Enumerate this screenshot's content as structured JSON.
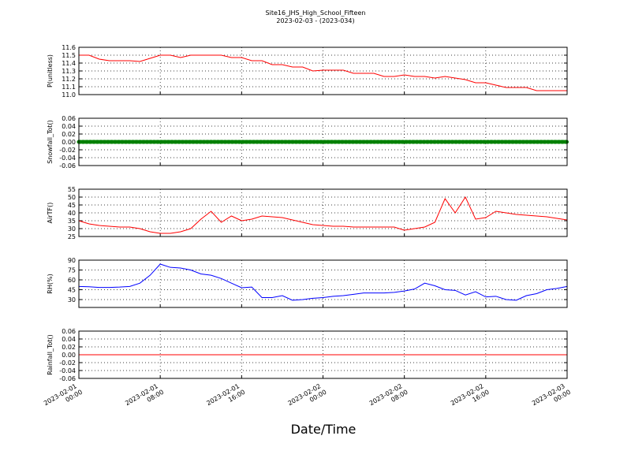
{
  "title": "Site16_JHS_High_School_Fifteen",
  "subtitle": "2023-02-03 - (2023-034)",
  "xlabel": "Date/Time",
  "chart_data": [
    {
      "type": "line",
      "ylabel": "P(unitless)",
      "ylim": [
        11.0,
        11.6
      ],
      "yticks": [
        {
          "value": 11.0,
          "label": "11.0"
        },
        11.1,
        11.2,
        11.3,
        11.4,
        11.5,
        11.6
      ],
      "grid": true,
      "xlim": [
        "2023-02-01 00:00",
        "2023-02-03 00:00"
      ],
      "xticks": [
        "2023-02-01 00:00",
        "2023-02-01 08:00",
        "2023-02-01 16:00",
        "2023-02-02 00:00",
        "2023-02-02 08:00",
        "2023-02-02 16:00",
        "2023-02-03 00:00"
      ],
      "x": [
        "2023-02-01 00:00",
        "2023-02-01 01:00",
        "2023-02-01 02:00",
        "2023-02-01 03:00",
        "2023-02-01 04:00",
        "2023-02-01 05:00",
        "2023-02-01 06:00",
        "2023-02-01 07:00",
        "2023-02-01 08:00",
        "2023-02-01 09:00",
        "2023-02-01 10:00",
        "2023-02-01 11:00",
        "2023-02-01 12:00",
        "2023-02-01 13:00",
        "2023-02-01 14:00",
        "2023-02-01 15:00",
        "2023-02-01 16:00",
        "2023-02-01 17:00",
        "2023-02-01 18:00",
        "2023-02-01 19:00",
        "2023-02-01 20:00",
        "2023-02-01 21:00",
        "2023-02-01 22:00",
        "2023-02-01 23:00",
        "2023-02-02 00:00",
        "2023-02-02 01:00",
        "2023-02-02 02:00",
        "2023-02-02 03:00",
        "2023-02-02 04:00",
        "2023-02-02 05:00",
        "2023-02-02 06:00",
        "2023-02-02 07:00",
        "2023-02-02 08:00",
        "2023-02-02 09:00",
        "2023-02-02 10:00",
        "2023-02-02 11:00",
        "2023-02-02 12:00",
        "2023-02-02 13:00",
        "2023-02-02 14:00",
        "2023-02-02 15:00",
        "2023-02-02 16:00",
        "2023-02-02 17:00",
        "2023-02-02 18:00",
        "2023-02-02 19:00",
        "2023-02-02 20:00",
        "2023-02-02 21:00",
        "2023-02-02 22:00",
        "2023-02-02 23:00",
        "2023-02-03 00:00"
      ],
      "series": [
        {
          "color": "#ff0000",
          "values": [
            11.5,
            11.5,
            11.45,
            11.43,
            11.43,
            11.43,
            11.42,
            11.46,
            11.5,
            11.5,
            11.47,
            11.5,
            11.5,
            11.5,
            11.5,
            11.47,
            11.47,
            11.43,
            11.43,
            11.38,
            11.38,
            11.35,
            11.35,
            11.3,
            11.31,
            11.31,
            11.31,
            11.27,
            11.27,
            11.27,
            11.23,
            11.23,
            11.25,
            11.23,
            11.23,
            11.21,
            11.23,
            11.21,
            11.19,
            11.15,
            11.15,
            11.12,
            11.09,
            11.09,
            11.09,
            11.05,
            11.05,
            11.05,
            11.05
          ]
        }
      ]
    },
    {
      "type": "line",
      "ylabel": "Snowfall_Tot()",
      "ylim": [
        -0.06,
        0.06
      ],
      "yticks": [
        -0.06,
        -0.04,
        -0.02,
        {
          "value": 0,
          "label": "0.00"
        },
        0.02,
        0.04,
        0.06
      ],
      "grid": true,
      "xlim": [
        "2023-02-01 00:00",
        "2023-02-03 00:00"
      ],
      "xticks": [
        "2023-02-01 00:00",
        "2023-02-01 08:00",
        "2023-02-01 16:00",
        "2023-02-02 00:00",
        "2023-02-02 08:00",
        "2023-02-02 16:00",
        "2023-02-03 00:00"
      ],
      "x": [
        "2023-02-01 00:00",
        "2023-02-01 01:00",
        "2023-02-01 02:00",
        "2023-02-01 03:00",
        "2023-02-01 04:00",
        "2023-02-01 05:00",
        "2023-02-01 06:00",
        "2023-02-01 07:00",
        "2023-02-01 08:00",
        "2023-02-01 09:00",
        "2023-02-01 10:00",
        "2023-02-01 11:00",
        "2023-02-01 12:00",
        "2023-02-01 13:00",
        "2023-02-01 14:00",
        "2023-02-01 15:00",
        "2023-02-01 16:00",
        "2023-02-01 17:00",
        "2023-02-01 18:00",
        "2023-02-01 19:00",
        "2023-02-01 20:00",
        "2023-02-01 21:00",
        "2023-02-01 22:00",
        "2023-02-01 23:00",
        "2023-02-02 00:00",
        "2023-02-02 01:00",
        "2023-02-02 02:00",
        "2023-02-02 03:00",
        "2023-02-02 04:00",
        "2023-02-02 05:00",
        "2023-02-02 06:00",
        "2023-02-02 07:00",
        "2023-02-02 08:00",
        "2023-02-02 09:00",
        "2023-02-02 10:00",
        "2023-02-02 11:00",
        "2023-02-02 12:00",
        "2023-02-02 13:00",
        "2023-02-02 14:00",
        "2023-02-02 15:00",
        "2023-02-02 16:00",
        "2023-02-02 17:00",
        "2023-02-02 18:00",
        "2023-02-02 19:00",
        "2023-02-02 20:00",
        "2023-02-02 21:00",
        "2023-02-02 22:00",
        "2023-02-02 23:00",
        "2023-02-03 00:00"
      ],
      "series": [
        {
          "color": "#008000",
          "marker": "o",
          "values": [
            0,
            0,
            0,
            0,
            0,
            0,
            0,
            0,
            0,
            0,
            0,
            0,
            0,
            0,
            0,
            0,
            0,
            0,
            0,
            0,
            0,
            0,
            0,
            0,
            0,
            0,
            0,
            0,
            0,
            0,
            0,
            0,
            0,
            0,
            0,
            0,
            0,
            0,
            0,
            0,
            0,
            0,
            0,
            0,
            0,
            0,
            0,
            0,
            0
          ]
        }
      ]
    },
    {
      "type": "line",
      "ylabel": "AirTF()",
      "ylim": [
        25,
        55
      ],
      "yticks": [
        25,
        30,
        35,
        40,
        45,
        50,
        55
      ],
      "grid": true,
      "xlim": [
        "2023-02-01 00:00",
        "2023-02-03 00:00"
      ],
      "xticks": [
        "2023-02-01 00:00",
        "2023-02-01 08:00",
        "2023-02-01 16:00",
        "2023-02-02 00:00",
        "2023-02-02 08:00",
        "2023-02-02 16:00",
        "2023-02-03 00:00"
      ],
      "x": [
        "2023-02-01 00:00",
        "2023-02-01 01:00",
        "2023-02-01 02:00",
        "2023-02-01 03:00",
        "2023-02-01 04:00",
        "2023-02-01 05:00",
        "2023-02-01 06:00",
        "2023-02-01 07:00",
        "2023-02-01 08:00",
        "2023-02-01 09:00",
        "2023-02-01 10:00",
        "2023-02-01 11:00",
        "2023-02-01 12:00",
        "2023-02-01 13:00",
        "2023-02-01 14:00",
        "2023-02-01 15:00",
        "2023-02-01 16:00",
        "2023-02-01 17:00",
        "2023-02-01 18:00",
        "2023-02-01 19:00",
        "2023-02-01 20:00",
        "2023-02-01 21:00",
        "2023-02-01 22:00",
        "2023-02-01 23:00",
        "2023-02-02 00:00",
        "2023-02-02 01:00",
        "2023-02-02 02:00",
        "2023-02-02 03:00",
        "2023-02-02 04:00",
        "2023-02-02 05:00",
        "2023-02-02 06:00",
        "2023-02-02 07:00",
        "2023-02-02 08:00",
        "2023-02-02 09:00",
        "2023-02-02 10:00",
        "2023-02-02 11:00",
        "2023-02-02 12:00",
        "2023-02-02 13:00",
        "2023-02-02 14:00",
        "2023-02-02 15:00",
        "2023-02-02 16:00",
        "2023-02-02 17:00",
        "2023-02-02 18:00",
        "2023-02-02 19:00",
        "2023-02-02 20:00",
        "2023-02-02 21:00",
        "2023-02-02 22:00",
        "2023-02-02 23:00",
        "2023-02-03 00:00"
      ],
      "series": [
        {
          "color": "#ff0000",
          "values": [
            35,
            33,
            32,
            31.5,
            31,
            31,
            30,
            28,
            27,
            27,
            28,
            30,
            36,
            41,
            34,
            38,
            35,
            36,
            38,
            37.5,
            37,
            35.5,
            34,
            32.5,
            32,
            31.5,
            31.5,
            31,
            31,
            31,
            31,
            31,
            29,
            30,
            31,
            34,
            49,
            40,
            50,
            36,
            37,
            41,
            40,
            39,
            38.5,
            38,
            37.5,
            36.5,
            35.5
          ]
        }
      ]
    },
    {
      "type": "line",
      "ylabel": "RH(%)",
      "ylim": [
        18,
        90
      ],
      "yticks": [
        30,
        45,
        60,
        75,
        90
      ],
      "grid": true,
      "xlim": [
        "2023-02-01 00:00",
        "2023-02-03 00:00"
      ],
      "xticks": [
        "2023-02-01 00:00",
        "2023-02-01 08:00",
        "2023-02-01 16:00",
        "2023-02-02 00:00",
        "2023-02-02 08:00",
        "2023-02-02 16:00",
        "2023-02-03 00:00"
      ],
      "x": [
        "2023-02-01 00:00",
        "2023-02-01 01:00",
        "2023-02-01 02:00",
        "2023-02-01 03:00",
        "2023-02-01 04:00",
        "2023-02-01 05:00",
        "2023-02-01 06:00",
        "2023-02-01 07:00",
        "2023-02-01 08:00",
        "2023-02-01 09:00",
        "2023-02-01 10:00",
        "2023-02-01 11:00",
        "2023-02-01 12:00",
        "2023-02-01 13:00",
        "2023-02-01 14:00",
        "2023-02-01 15:00",
        "2023-02-01 16:00",
        "2023-02-01 17:00",
        "2023-02-01 18:00",
        "2023-02-01 19:00",
        "2023-02-01 20:00",
        "2023-02-01 21:00",
        "2023-02-01 22:00",
        "2023-02-01 23:00",
        "2023-02-02 00:00",
        "2023-02-02 01:00",
        "2023-02-02 02:00",
        "2023-02-02 03:00",
        "2023-02-02 04:00",
        "2023-02-02 05:00",
        "2023-02-02 06:00",
        "2023-02-02 07:00",
        "2023-02-02 08:00",
        "2023-02-02 09:00",
        "2023-02-02 10:00",
        "2023-02-02 11:00",
        "2023-02-02 12:00",
        "2023-02-02 13:00",
        "2023-02-02 14:00",
        "2023-02-02 15:00",
        "2023-02-02 16:00",
        "2023-02-02 17:00",
        "2023-02-02 18:00",
        "2023-02-02 19:00",
        "2023-02-02 20:00",
        "2023-02-02 21:00",
        "2023-02-02 22:00",
        "2023-02-02 23:00",
        "2023-02-03 00:00"
      ],
      "series": [
        {
          "color": "#0000ff",
          "values": [
            50,
            49.5,
            48.5,
            48.5,
            49,
            50,
            55,
            67,
            84,
            79,
            78,
            75,
            69,
            67,
            62,
            55,
            48,
            49,
            33,
            33,
            36,
            29,
            30,
            32,
            33,
            35,
            36,
            38,
            40,
            40,
            40,
            41,
            43,
            46,
            55,
            51,
            45,
            44,
            37,
            42,
            34,
            35,
            30,
            29,
            36,
            39,
            45,
            47,
            50
          ]
        }
      ]
    },
    {
      "type": "line",
      "ylabel": "Rainfall_Tot()",
      "ylim": [
        -0.06,
        0.06
      ],
      "yticks": [
        -0.06,
        -0.04,
        -0.02,
        {
          "value": 0,
          "label": "0.00"
        },
        0.02,
        0.04,
        0.06
      ],
      "grid": true,
      "xlim": [
        "2023-02-01 00:00",
        "2023-02-03 00:00"
      ],
      "xticks": [
        "2023-02-01 00:00",
        "2023-02-01 08:00",
        "2023-02-01 16:00",
        "2023-02-02 00:00",
        "2023-02-02 08:00",
        "2023-02-02 16:00",
        "2023-02-03 00:00"
      ],
      "x": [
        "2023-02-01 00:00",
        "2023-02-01 01:00",
        "2023-02-01 02:00",
        "2023-02-01 03:00",
        "2023-02-01 04:00",
        "2023-02-01 05:00",
        "2023-02-01 06:00",
        "2023-02-01 07:00",
        "2023-02-01 08:00",
        "2023-02-01 09:00",
        "2023-02-01 10:00",
        "2023-02-01 11:00",
        "2023-02-01 12:00",
        "2023-02-01 13:00",
        "2023-02-01 14:00",
        "2023-02-01 15:00",
        "2023-02-01 16:00",
        "2023-02-01 17:00",
        "2023-02-01 18:00",
        "2023-02-01 19:00",
        "2023-02-01 20:00",
        "2023-02-01 21:00",
        "2023-02-01 22:00",
        "2023-02-01 23:00",
        "2023-02-02 00:00",
        "2023-02-02 01:00",
        "2023-02-02 02:00",
        "2023-02-02 03:00",
        "2023-02-02 04:00",
        "2023-02-02 05:00",
        "2023-02-02 06:00",
        "2023-02-02 07:00",
        "2023-02-02 08:00",
        "2023-02-02 09:00",
        "2023-02-02 10:00",
        "2023-02-02 11:00",
        "2023-02-02 12:00",
        "2023-02-02 13:00",
        "2023-02-02 14:00",
        "2023-02-02 15:00",
        "2023-02-02 16:00",
        "2023-02-02 17:00",
        "2023-02-02 18:00",
        "2023-02-02 19:00",
        "2023-02-02 20:00",
        "2023-02-02 21:00",
        "2023-02-02 22:00",
        "2023-02-02 23:00",
        "2023-02-03 00:00"
      ],
      "series": [
        {
          "color": "#ff0000",
          "values": [
            0,
            0,
            0,
            0,
            0,
            0,
            0,
            0,
            0,
            0,
            0,
            0,
            0,
            0,
            0,
            0,
            0,
            0,
            0,
            0,
            0,
            0,
            0,
            0,
            0,
            0,
            0,
            0,
            0,
            0,
            0,
            0,
            0,
            0,
            0,
            0,
            0,
            0,
            0,
            0,
            0,
            0,
            0,
            0,
            0,
            0,
            0,
            0,
            0
          ]
        }
      ]
    }
  ]
}
